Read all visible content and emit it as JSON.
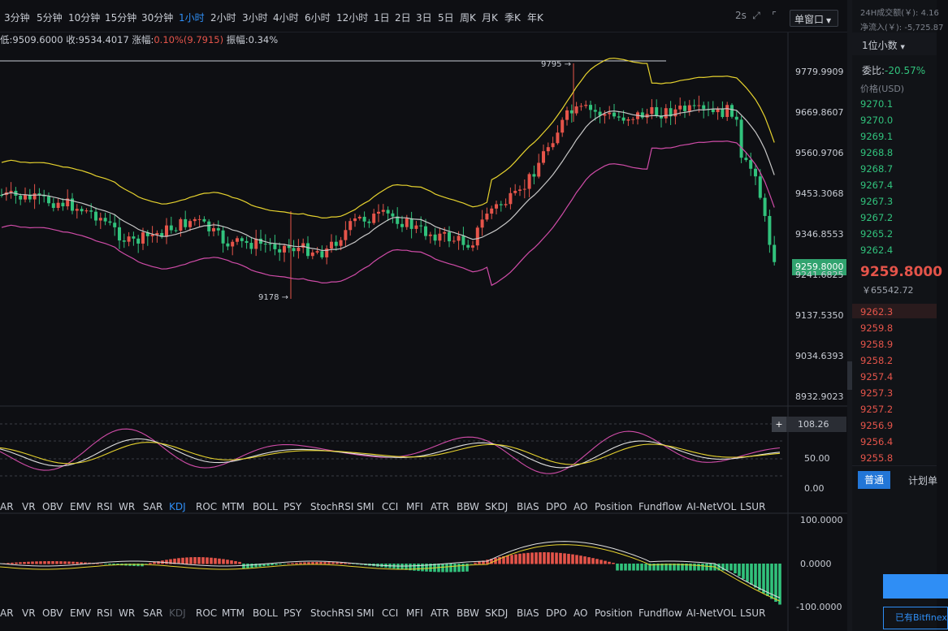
{
  "periods": [
    "3分钟",
    "5分钟",
    "10分钟",
    "15分钟",
    "30分钟",
    "1小时",
    "2小时",
    "3小时",
    "4小时",
    "6小时",
    "12小时",
    "1日",
    "2日",
    "3日",
    "5日",
    "周K",
    "月K",
    "季K",
    "年K"
  ],
  "active_period": "1小时",
  "toolbar": {
    "interval_text": "2s",
    "single_window": "单窗口"
  },
  "ohlc": {
    "low": "低:9509.6000",
    "close": "收:9534.4017",
    "change_label": "涨幅:",
    "change_value": "0.10%(9.7915)",
    "amp": "振幅:0.34%"
  },
  "price_axis": [
    "9779.9909",
    "9669.8607",
    "9560.9706",
    "9453.3068",
    "9346.8553",
    "9241.6825",
    "9137.5350",
    "9034.6393",
    "8932.9023"
  ],
  "current_price_tag": "9259.8000",
  "annotations": {
    "high": "9795 →",
    "low": "9178 →"
  },
  "kdj_axis": [
    "108.26",
    "50.00",
    "0.00"
  ],
  "macd_axis": [
    "100.0000",
    "0.0000",
    "-100.0000"
  ],
  "indicators": [
    "AR",
    "VR",
    "OBV",
    "EMV",
    "RSI",
    "WR",
    "SAR",
    "KDJ",
    "ROC",
    "MTM",
    "BOLL",
    "PSY",
    "StochRSI",
    "SMI",
    "CCI",
    "MFI",
    "ATR",
    "BBW",
    "SKDJ",
    "BIAS",
    "DPO",
    "AO",
    "Position",
    "Fundflow",
    "AI-NetVOL",
    "LSUR"
  ],
  "indicators_row1_active": "KDJ",
  "indicators_row2_dim": "KDJ",
  "sidebar": {
    "volume_label": "24H成交额(￥): 4.16",
    "netflow_label": "净流入(￥): -5,725.87",
    "decimals": "1位小数",
    "ratio_label": "委比:",
    "ratio_value": "-20.57%",
    "price_header": "价格(USD)",
    "bids": [
      "9270.1",
      "9270.0",
      "9269.1",
      "9268.8",
      "9268.7",
      "9267.4",
      "9267.3",
      "9267.2",
      "9265.2",
      "9262.4"
    ],
    "last_price": "9259.8000",
    "last_cny": "￥65542.72",
    "asks": [
      "9262.3",
      "9259.8",
      "9258.9",
      "9258.2",
      "9257.4",
      "9257.3",
      "9257.2",
      "9256.9",
      "9256.4",
      "9255.8"
    ],
    "tab_normal": "普通",
    "tab_plan": "计划单",
    "account_btn": "已有Bitfinex"
  },
  "colors": {
    "up": "#e5544a",
    "down": "#31c27c",
    "accent": "#2f8ef5",
    "boll_upper": "#e6d22e",
    "boll_mid": "#c7c7c7",
    "boll_lower": "#d04ca8"
  },
  "icons": [
    "fullscreen-icon",
    "expand-icon",
    "window-icon",
    "chevron-down-icon",
    "plus-icon"
  ]
}
